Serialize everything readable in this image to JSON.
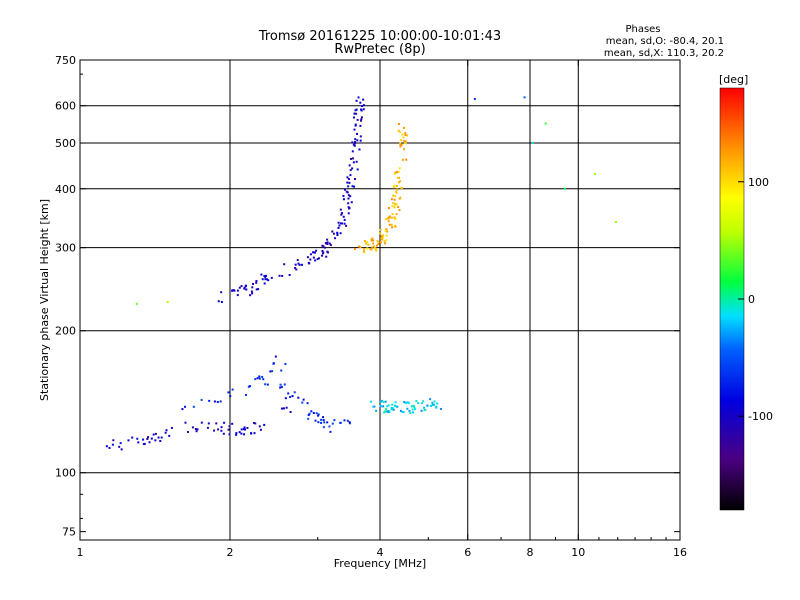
{
  "header": {
    "title": "Tromsø 20161225 10:00:00-10:01:43",
    "subtitle": "RwPretec (8p)",
    "stats_title": "Phases",
    "stats_o": "mean, sd,O: -80.4, 20.1",
    "stats_x": "mean, sd,X: 110.3, 20.2"
  },
  "colorbar": {
    "label": "[deg]",
    "min": -180,
    "max": 180,
    "ticks": [
      {
        "value": 100,
        "label": "100"
      },
      {
        "value": 0,
        "label": "0"
      },
      {
        "value": -100,
        "label": "-100"
      }
    ]
  },
  "chart_data": {
    "type": "scatter",
    "xlabel": "Frequency [MHz]",
    "ylabel": "Stationary phase Virtual Height [km]",
    "x_scale": "log",
    "y_scale": "log",
    "xlim": [
      1,
      16
    ],
    "ylim": [
      72,
      750
    ],
    "x_ticks": [
      {
        "value": 1,
        "label": "1"
      },
      {
        "value": 2,
        "label": "2"
      },
      {
        "value": 4,
        "label": "4"
      },
      {
        "value": 6,
        "label": "6"
      },
      {
        "value": 8,
        "label": "8"
      },
      {
        "value": 10,
        "label": "10"
      },
      {
        "value": 16,
        "label": "16"
      }
    ],
    "x_grid": [
      2,
      4,
      6,
      8,
      10
    ],
    "y_ticks": [
      {
        "value": 75,
        "label": "75"
      },
      {
        "value": 100,
        "label": "100"
      },
      {
        "value": 200,
        "label": "200"
      },
      {
        "value": 300,
        "label": "300"
      },
      {
        "value": 400,
        "label": "400"
      },
      {
        "value": 500,
        "label": "500"
      },
      {
        "value": 600,
        "label": "600"
      },
      {
        "value": 750,
        "label": "750"
      }
    ],
    "y_grid": [
      100,
      200,
      300,
      400,
      500,
      600
    ],
    "grid": true,
    "color_by": "phase [deg]",
    "series": [
      {
        "description": "E-region trace (O)",
        "x": [
          1.1,
          1.2,
          1.35,
          1.5,
          1.7,
          1.9,
          2.1,
          2.3,
          2.5,
          2.7
        ],
        "y": [
          112,
          115,
          118,
          122,
          125,
          125,
          122,
          125,
          132,
          138
        ],
        "phase": -100
      },
      {
        "description": "E-region spread",
        "x": [
          1.6,
          1.9,
          2.2,
          2.4,
          2.5,
          2.6,
          2.8,
          3.0,
          3.2,
          3.5
        ],
        "y": [
          135,
          145,
          150,
          160,
          175,
          150,
          140,
          130,
          125,
          130
        ],
        "phase": -70
      },
      {
        "description": "Es trace",
        "x": [
          3.9,
          4.2,
          4.5,
          4.9,
          5.2
        ],
        "y": [
          138,
          138,
          137,
          139,
          140
        ],
        "phase": -15
      },
      {
        "description": "F-region trace (O)",
        "x": [
          1.9,
          2.2,
          2.5,
          2.8,
          3.1,
          3.3,
          3.45,
          3.55,
          3.6,
          3.65
        ],
        "y": [
          235,
          245,
          265,
          282,
          295,
          320,
          380,
          450,
          540,
          630
        ],
        "phase": -100
      },
      {
        "description": "F-region trace (X)",
        "x": [
          3.6,
          3.9,
          4.1,
          4.25,
          4.35,
          4.42,
          4.45
        ],
        "y": [
          298,
          305,
          320,
          350,
          400,
          470,
          540
        ],
        "phase": 115
      },
      {
        "description": "Scattered points",
        "x": [
          1.3,
          1.5,
          6.2,
          7.8,
          8.1,
          8.6,
          9.4,
          10.8,
          11.9
        ],
        "y": [
          228,
          230,
          620,
          625,
          500,
          550,
          400,
          430,
          340
        ],
        "phase": 0
      }
    ]
  }
}
